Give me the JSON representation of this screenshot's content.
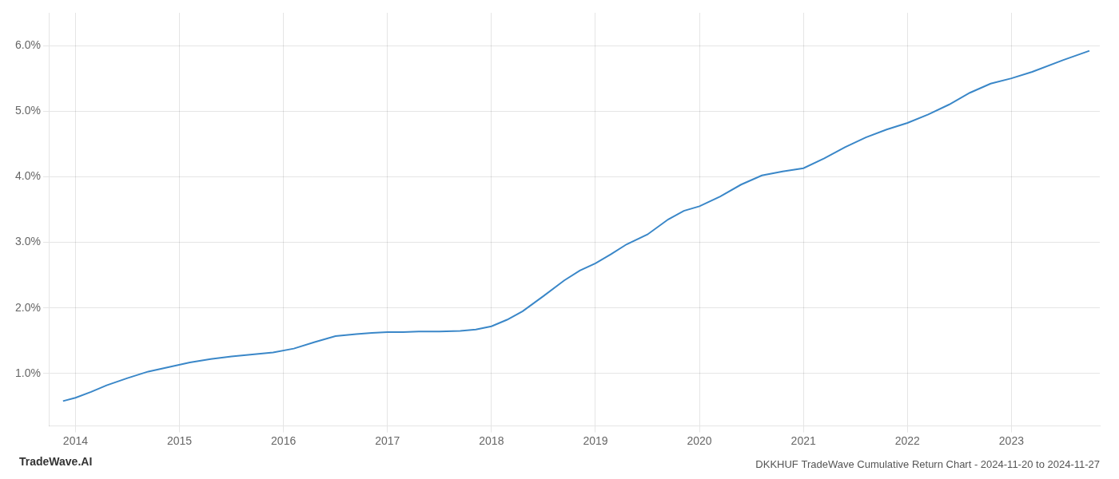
{
  "chart_data": {
    "type": "line",
    "title": "DKKHUF TradeWave Cumulative Return Chart - 2024-11-20 to 2024-11-27",
    "annotations": [
      "TradeWave.AI"
    ],
    "x": [
      2013.88,
      2014.0,
      2014.15,
      2014.3,
      2014.5,
      2014.7,
      2014.9,
      2015.1,
      2015.3,
      2015.5,
      2015.7,
      2015.9,
      2016.1,
      2016.3,
      2016.5,
      2016.7,
      2016.85,
      2017.0,
      2017.15,
      2017.3,
      2017.5,
      2017.7,
      2017.85,
      2018.0,
      2018.15,
      2018.3,
      2018.5,
      2018.7,
      2018.85,
      2019.0,
      2019.15,
      2019.3,
      2019.5,
      2019.7,
      2019.85,
      2020.0,
      2020.2,
      2020.4,
      2020.6,
      2020.8,
      2021.0,
      2021.2,
      2021.4,
      2021.6,
      2021.8,
      2022.0,
      2022.2,
      2022.4,
      2022.6,
      2022.8,
      2023.0,
      2023.2,
      2023.5,
      2023.75
    ],
    "values": [
      0.58,
      0.63,
      0.72,
      0.82,
      0.93,
      1.03,
      1.1,
      1.17,
      1.22,
      1.26,
      1.29,
      1.32,
      1.38,
      1.48,
      1.57,
      1.6,
      1.62,
      1.63,
      1.63,
      1.64,
      1.64,
      1.65,
      1.67,
      1.72,
      1.82,
      1.95,
      2.18,
      2.42,
      2.57,
      2.68,
      2.82,
      2.97,
      3.12,
      3.35,
      3.48,
      3.55,
      3.7,
      3.88,
      4.02,
      4.08,
      4.13,
      4.28,
      4.45,
      4.6,
      4.72,
      4.82,
      4.95,
      5.1,
      5.28,
      5.42,
      5.5,
      5.6,
      5.78,
      5.92
    ],
    "color": "#3a87c8",
    "xlim": [
      2013.75,
      2023.85
    ],
    "xticks": [
      2014,
      2015,
      2016,
      2017,
      2018,
      2019,
      2020,
      2021,
      2022,
      2023
    ],
    "ylim": [
      0.2,
      6.5
    ],
    "yticks": [
      {
        "value": 1.0,
        "label": "1.0%"
      },
      {
        "value": 2.0,
        "label": "2.0%"
      },
      {
        "value": 3.0,
        "label": "3.0%"
      },
      {
        "value": 4.0,
        "label": "4.0%"
      },
      {
        "value": 5.0,
        "label": "5.0%"
      },
      {
        "value": 6.0,
        "label": "6.0%"
      }
    ],
    "grid": true
  }
}
